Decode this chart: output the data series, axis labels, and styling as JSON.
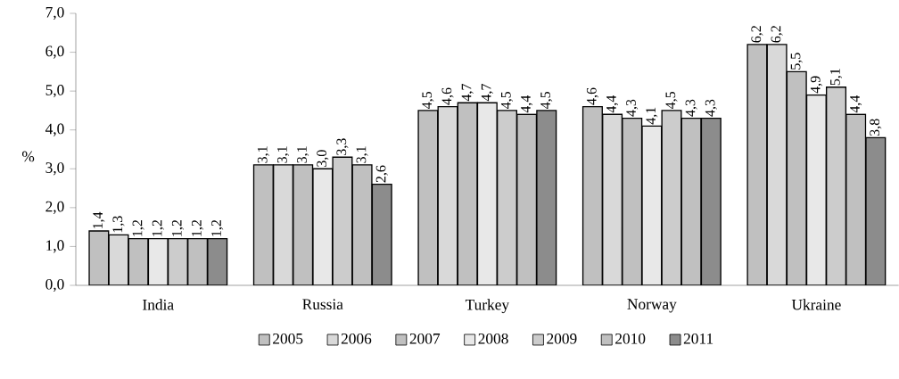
{
  "chart_data": {
    "type": "bar",
    "ylabel": "%",
    "categories": [
      "India",
      "Russia",
      "Turkey",
      "Norway",
      "Ukraine"
    ],
    "series": [
      {
        "name": "2005",
        "color": "#c0c0c0",
        "values": [
          1.4,
          3.1,
          4.5,
          4.6,
          6.2
        ],
        "value_labels": [
          "1,4",
          "3,1",
          "4,5",
          "4,6",
          "6,2"
        ]
      },
      {
        "name": "2006",
        "color": "#d9d9d9",
        "values": [
          1.3,
          3.1,
          4.6,
          4.4,
          6.2
        ],
        "value_labels": [
          "1,3",
          "3,1",
          "4,6",
          "4,4",
          "6,2"
        ]
      },
      {
        "name": "2007",
        "color": "#c0c0c0",
        "values": [
          1.2,
          3.1,
          4.7,
          4.3,
          5.5
        ],
        "value_labels": [
          "1,2",
          "3,1",
          "4,7",
          "4,3",
          "5,5"
        ]
      },
      {
        "name": "2008",
        "color": "#e8e8e8",
        "values": [
          1.2,
          3.0,
          4.7,
          4.1,
          4.9
        ],
        "value_labels": [
          "1,2",
          "3,0",
          "4,7",
          "4,1",
          "4,9"
        ]
      },
      {
        "name": "2009",
        "color": "#cccccc",
        "values": [
          1.2,
          3.3,
          4.5,
          4.5,
          5.1
        ],
        "value_labels": [
          "1,2",
          "3,3",
          "4,5",
          "4,5",
          "5,1"
        ]
      },
      {
        "name": "2010",
        "color": "#c0c0c0",
        "values": [
          1.2,
          3.1,
          4.4,
          4.3,
          4.4
        ],
        "value_labels": [
          "1,2",
          "3,1",
          "4,4",
          "4,3",
          "4,4"
        ]
      },
      {
        "name": "2011",
        "color": "#8c8c8c",
        "values": [
          1.2,
          2.6,
          4.5,
          4.3,
          3.8
        ],
        "value_labels": [
          "1,2",
          "2,6",
          "4,5",
          "4,3",
          "3,8"
        ]
      }
    ],
    "ylim": [
      0,
      7
    ],
    "yticks": [
      {
        "value": 0,
        "label": "0,0"
      },
      {
        "value": 1,
        "label": "1,0"
      },
      {
        "value": 2,
        "label": "2,0"
      },
      {
        "value": 3,
        "label": "3,0"
      },
      {
        "value": 4,
        "label": "4,0"
      },
      {
        "value": 5,
        "label": "5,0"
      },
      {
        "value": 6,
        "label": "6,0"
      },
      {
        "value": 7,
        "label": "7,0"
      }
    ],
    "grid": false,
    "legend": "bottom"
  }
}
